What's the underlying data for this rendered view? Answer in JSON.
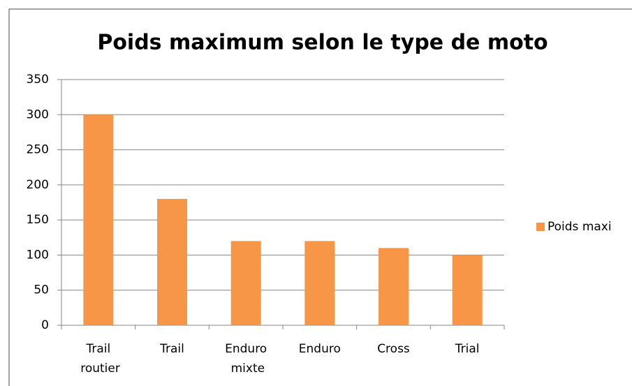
{
  "chart_data": {
    "type": "bar",
    "title": "Poids maximum selon le type de moto",
    "categories": [
      "Trail routier",
      "Trail",
      "Enduro mixte",
      "Enduro",
      "Cross",
      "Trial"
    ],
    "series": [
      {
        "name": "Poids maxi",
        "color": "#f79646",
        "values": [
          300,
          180,
          120,
          120,
          110,
          100
        ]
      }
    ],
    "ylim": [
      0,
      350
    ],
    "yticks": [
      0,
      50,
      100,
      150,
      200,
      250,
      300,
      350
    ],
    "grid": true,
    "legend": "right"
  }
}
